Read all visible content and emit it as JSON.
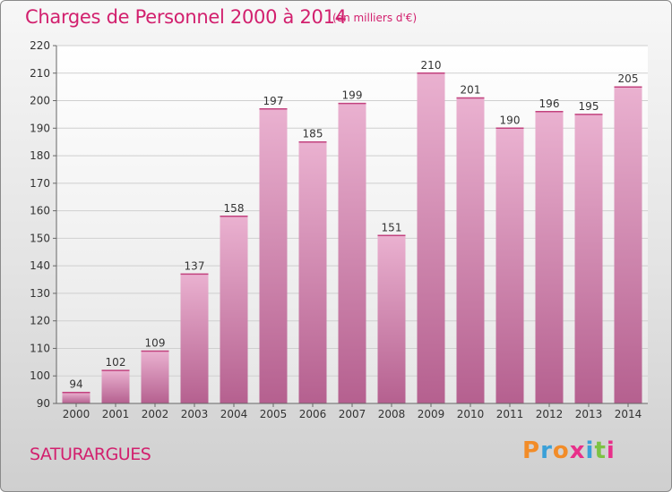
{
  "header": {
    "title": "Charges de Personnel 2000 à 2014",
    "unit": "(en milliers d'€)"
  },
  "footer": {
    "town": "SATURARGUES",
    "logo": {
      "letters": [
        "P",
        "r",
        "o",
        "x",
        "i",
        "t",
        "i"
      ],
      "colors": [
        "#f28c28",
        "#3aa0d8",
        "#f28c28",
        "#e8308a",
        "#3aa0d8",
        "#7cc243",
        "#e8308a"
      ]
    }
  },
  "chart_data": {
    "type": "bar",
    "title": "Charges de Personnel 2000 à 2014",
    "subtitle": "(en milliers d'€)",
    "categories": [
      "2000",
      "2001",
      "2002",
      "2003",
      "2004",
      "2005",
      "2006",
      "2007",
      "2008",
      "2009",
      "2010",
      "2011",
      "2012",
      "2013",
      "2014"
    ],
    "values": [
      94,
      102,
      109,
      137,
      158,
      197,
      185,
      199,
      151,
      210,
      201,
      190,
      196,
      195,
      205
    ],
    "ylim": [
      90,
      220
    ],
    "yticks": [
      90,
      100,
      110,
      120,
      130,
      140,
      150,
      160,
      170,
      180,
      190,
      200,
      210,
      220
    ],
    "grid": true,
    "bar_color": "#d98cb3",
    "colors": {
      "accent": "#d2206e",
      "bar_light": "#eab1d0",
      "bar_dark": "#b5608f"
    }
  }
}
